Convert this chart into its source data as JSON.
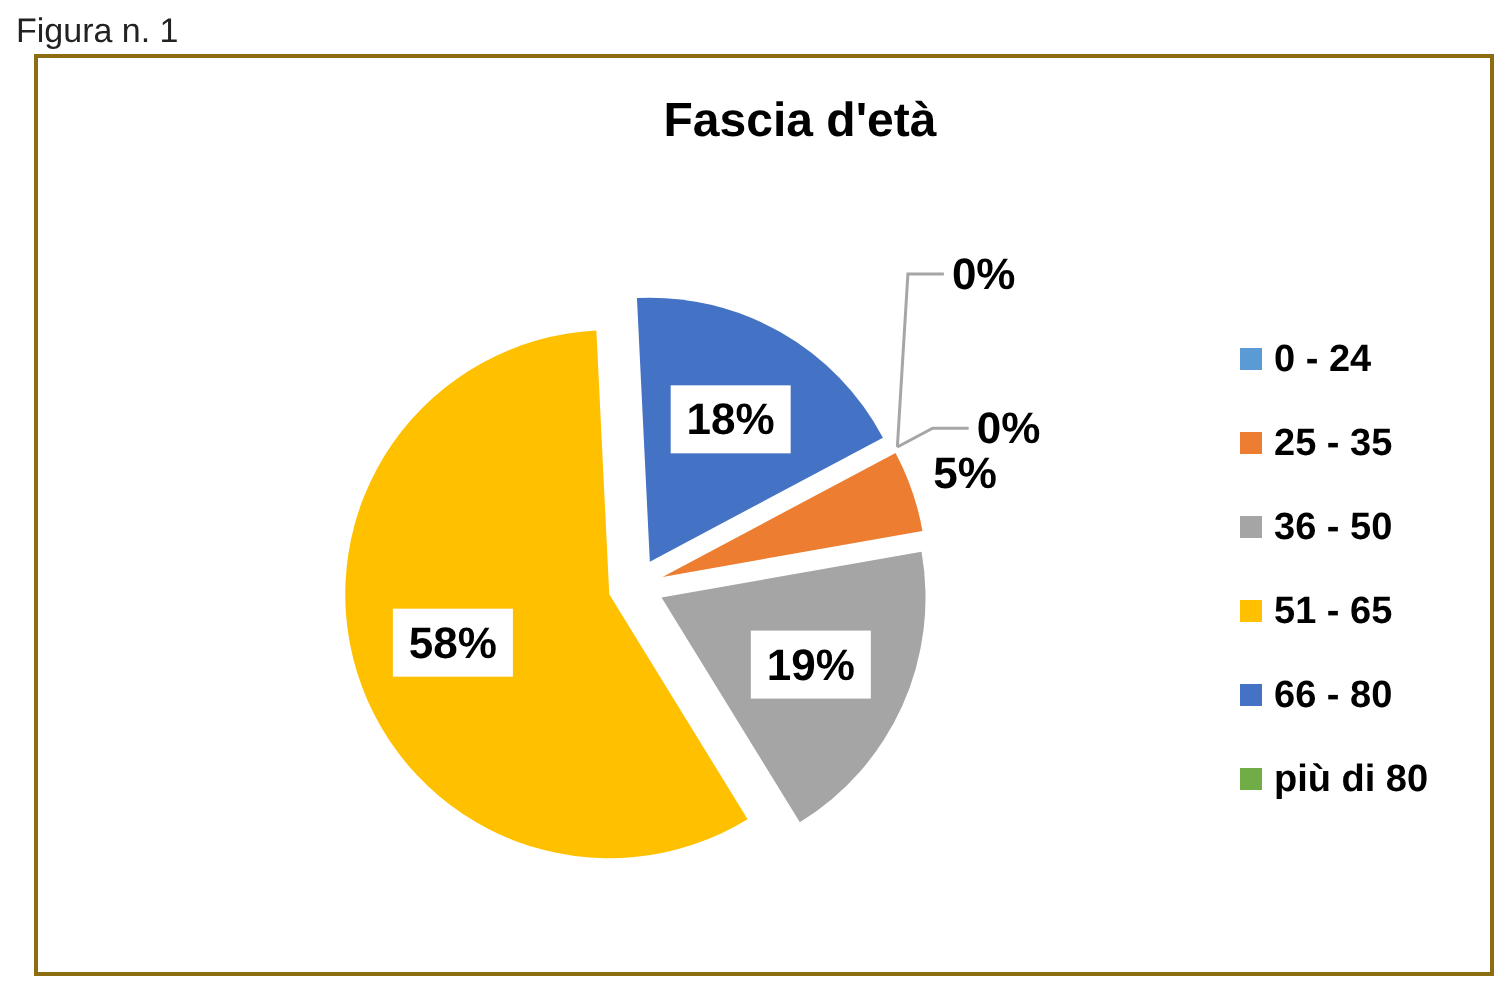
{
  "chart_data": {
    "type": "pie",
    "title": "Fascia d'età",
    "categories": [
      "0 - 24",
      "25 - 35",
      "36 - 50",
      "51 - 65",
      "66 - 80",
      "più di 80"
    ],
    "values": [
      0,
      5,
      19,
      58,
      18,
      0
    ],
    "colors": [
      "#5b9bd5",
      "#ed7d31",
      "#a5a5a5",
      "#ffc000",
      "#4472c4",
      "#70ad47"
    ],
    "value_labels": [
      "0%",
      "5%",
      "19%",
      "58%",
      "18%",
      "0%"
    ],
    "legend": "right",
    "annotations": [
      "Figura n. 1"
    ]
  }
}
